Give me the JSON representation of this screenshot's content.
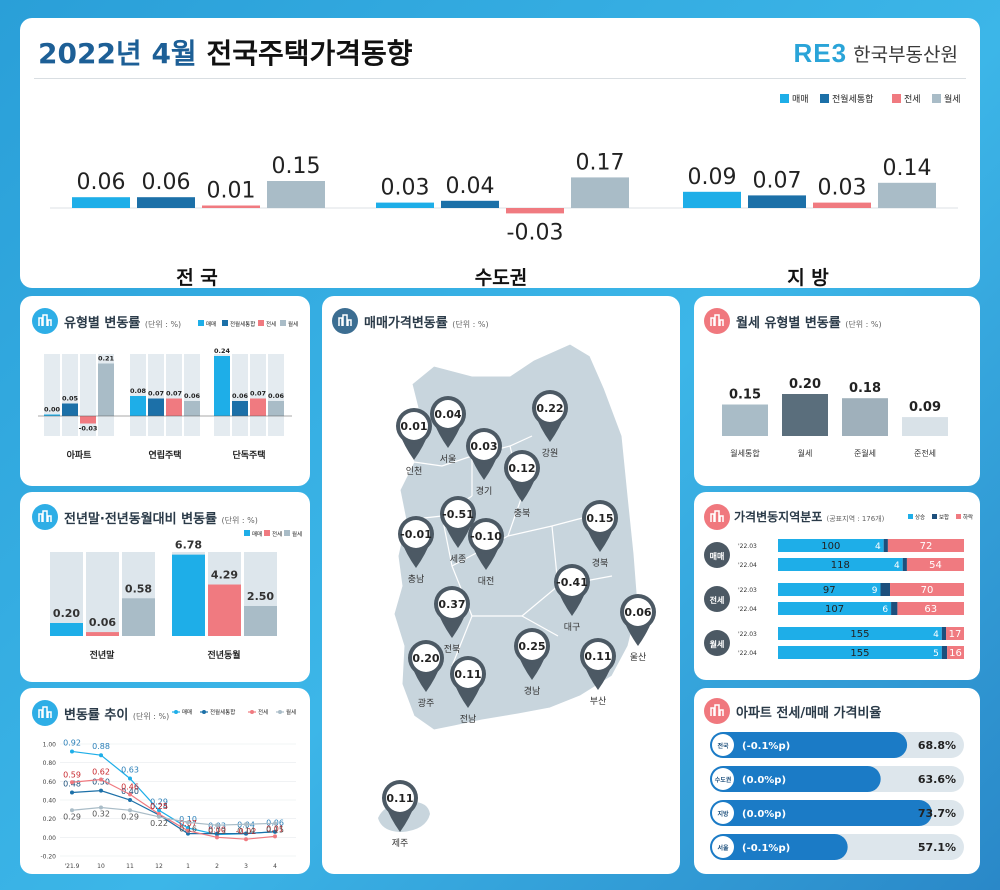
{
  "header": {
    "title_year": "2022년 4월",
    "title_main": "전국주택가격동향",
    "logo_text": "RE3",
    "org_name": "한국부동산원"
  },
  "colors": {
    "sale": "#1eaee8",
    "combined": "#1c70a8",
    "jeonse": "#f07a80",
    "wolse": "#a9bcc7",
    "navy": "#1d4f7c"
  },
  "top_legend": [
    "매매",
    "전월세통합",
    "전세",
    "월세"
  ],
  "top_chart": {
    "groups": [
      {
        "name": "전 국",
        "values": [
          0.06,
          0.06,
          0.01,
          0.15
        ],
        "labels": [
          "0.06",
          "0.06",
          "0.01",
          "0.15"
        ]
      },
      {
        "name": "수도권",
        "values": [
          0.03,
          0.04,
          -0.03,
          0.17
        ],
        "labels": [
          "0.03",
          "0.04",
          "-0.03",
          "0.17"
        ]
      },
      {
        "name": "지 방",
        "values": [
          0.09,
          0.07,
          0.03,
          0.14
        ],
        "labels": [
          "0.09",
          "0.07",
          "0.03",
          "0.14"
        ]
      }
    ]
  },
  "type_panel": {
    "title": "유형별 변동률",
    "unit": "(단위 : %)",
    "legend": [
      "매매",
      "전월세통합",
      "전세",
      "월세"
    ],
    "chart_data": {
      "type": "bar",
      "categories": [
        "아파트",
        "연립주택",
        "단독주택"
      ],
      "series": [
        {
          "name": "매매",
          "values": [
            0.0,
            0.08,
            0.24
          ],
          "labels": [
            "0.00",
            "0.08",
            "0.24"
          ]
        },
        {
          "name": "전월세통합",
          "values": [
            0.05,
            0.07,
            0.06
          ],
          "labels": [
            "0.05",
            "0.07",
            "0.06"
          ]
        },
        {
          "name": "전세",
          "values": [
            -0.03,
            0.07,
            0.07
          ],
          "labels": [
            "-0.03",
            "0.07",
            "0.07"
          ]
        },
        {
          "name": "월세",
          "values": [
            0.21,
            0.06,
            0.06
          ],
          "labels": [
            "0.21",
            "0.06",
            "0.06"
          ]
        }
      ]
    }
  },
  "yoy_panel": {
    "title": "전년말·전년동월대비 변동률",
    "unit": "(단위 : %)",
    "legend": [
      "매매",
      "전세",
      "월세"
    ],
    "chart_data": {
      "type": "bar",
      "categories": [
        "전년말",
        "전년동월"
      ],
      "series": [
        {
          "name": "매매",
          "values": [
            0.2,
            6.78
          ],
          "labels": [
            "0.20",
            "6.78"
          ]
        },
        {
          "name": "전세",
          "values": [
            0.06,
            4.29
          ],
          "labels": [
            "0.06",
            "4.29"
          ]
        },
        {
          "name": "월세",
          "values": [
            0.58,
            2.5
          ],
          "labels": [
            "0.58",
            "2.50"
          ]
        }
      ]
    }
  },
  "trend_panel": {
    "title": "변동률 추이",
    "unit": "(단위 : %)",
    "legend": [
      "매매",
      "전월세통합",
      "전세",
      "월세"
    ],
    "chart_data": {
      "type": "line",
      "x": [
        "'21.9",
        "10",
        "11",
        "12",
        "1",
        "2",
        "3",
        "4"
      ],
      "yticks": [
        "1.00",
        "0.80",
        "0.60",
        "0.40",
        "0.20",
        "0.00",
        "-0.20"
      ],
      "ylim": [
        -0.2,
        1.0
      ],
      "series": [
        {
          "name": "매매",
          "values": [
            0.92,
            0.88,
            0.63,
            0.29,
            0.1,
            0.03,
            0.04,
            0.06
          ],
          "labels": [
            "0.92",
            "0.88",
            "0.63",
            "0.29",
            "0.10",
            "0.03",
            "0.04",
            "0.06"
          ]
        },
        {
          "name": "전월세통합",
          "values": [
            0.48,
            0.5,
            0.4,
            0.24,
            0.04,
            0.04,
            0.04,
            0.06
          ],
          "labels": [
            "0.48",
            "0.50",
            "0.40",
            "0.24",
            "",
            "",
            "",
            ""
          ]
        },
        {
          "name": "전세",
          "values": [
            0.59,
            0.62,
            0.46,
            0.25,
            0.07,
            0.0,
            -0.02,
            0.01
          ],
          "labels": [
            "0.59",
            "0.62",
            "0.46",
            "0.25",
            "0.07",
            "0.00",
            "-0.02",
            "0.01"
          ]
        },
        {
          "name": "월세",
          "values": [
            0.29,
            0.32,
            0.29,
            0.22,
            0.16,
            0.13,
            0.14,
            0.15
          ],
          "labels": [
            "0.29",
            "0.32",
            "0.29",
            "0.22",
            "0.16",
            "0.13",
            "0.14",
            "0.15"
          ]
        }
      ]
    }
  },
  "map_panel": {
    "title": "매매가격변동률",
    "unit": "(단위 : %)",
    "regions": [
      {
        "name": "인천",
        "value": "0.01"
      },
      {
        "name": "서울",
        "value": "0.04"
      },
      {
        "name": "경기",
        "value": "0.03"
      },
      {
        "name": "강원",
        "value": "0.22"
      },
      {
        "name": "충북",
        "value": "0.12"
      },
      {
        "name": "세종",
        "value": "-0.51"
      },
      {
        "name": "대전",
        "value": "-0.10"
      },
      {
        "name": "충남",
        "value": "-0.01"
      },
      {
        "name": "경북",
        "value": "0.15"
      },
      {
        "name": "대구",
        "value": "-0.41"
      },
      {
        "name": "전북",
        "value": "0.37"
      },
      {
        "name": "울산",
        "value": "0.06"
      },
      {
        "name": "경남",
        "value": "0.25"
      },
      {
        "name": "부산",
        "value": "0.11"
      },
      {
        "name": "광주",
        "value": "0.20"
      },
      {
        "name": "전남",
        "value": "0.11"
      },
      {
        "name": "제주",
        "value": "0.11"
      }
    ]
  },
  "wolse_panel": {
    "title": "월세 유형별 변동률",
    "unit": "(단위 : %)",
    "chart_data": {
      "type": "bar",
      "categories": [
        "월세통합",
        "월세",
        "준월세",
        "준전세"
      ],
      "values": [
        0.15,
        0.2,
        0.18,
        0.09
      ],
      "labels": [
        "0.15",
        "0.20",
        "0.18",
        "0.09"
      ]
    }
  },
  "dist_panel": {
    "title": "가격변동지역분포",
    "subtitle": "(공표지역 : 176개)",
    "legend": [
      "상승",
      "보합",
      "하락"
    ],
    "groups": [
      {
        "name": "매매",
        "rows": [
          {
            "period": "'22.03",
            "up": 100,
            "flat": 4,
            "down": 72
          },
          {
            "period": "'22.04",
            "up": 118,
            "flat": 4,
            "down": 54
          }
        ]
      },
      {
        "name": "전세",
        "rows": [
          {
            "period": "'22.03",
            "up": 97,
            "flat": 9,
            "down": 70
          },
          {
            "period": "'22.04",
            "up": 107,
            "flat": 6,
            "down": 63
          }
        ]
      },
      {
        "name": "월세",
        "rows": [
          {
            "period": "'22.03",
            "up": 155,
            "flat": 4,
            "down": 17
          },
          {
            "period": "'22.04",
            "up": 155,
            "flat": 5,
            "down": 16
          }
        ]
      }
    ]
  },
  "ratio_panel": {
    "title": "아파트 전세/매매 가격비율",
    "rows": [
      {
        "region": "전국",
        "change": "(-0.1%p)",
        "value": 68.8,
        "label": "68.8%"
      },
      {
        "region": "수도권",
        "change": "(0.0%p)",
        "value": 63.6,
        "label": "63.6%"
      },
      {
        "region": "지방",
        "change": "(0.0%p)",
        "value": 73.7,
        "label": "73.7%"
      },
      {
        "region": "서울",
        "change": "(-0.1%p)",
        "value": 57.1,
        "label": "57.1%"
      }
    ]
  }
}
